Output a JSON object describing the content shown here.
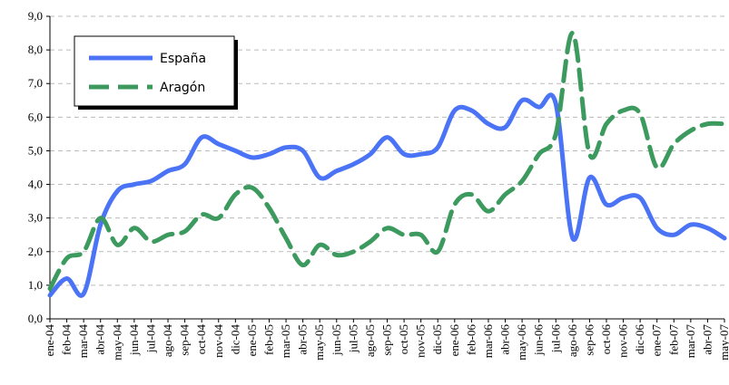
{
  "chart_data": {
    "type": "line",
    "categories": [
      "ene-04",
      "feb-04",
      "mar-04",
      "abr-04",
      "may-04",
      "jun-04",
      "jul-04",
      "ago-04",
      "sep-04",
      "oct-04",
      "nov-04",
      "dic-04",
      "ene-05",
      "feb-05",
      "mar-05",
      "abr-05",
      "may-05",
      "jun-05",
      "jul-05",
      "ago-05",
      "sep-05",
      "oct-05",
      "nov-05",
      "dic-05",
      "ene-06",
      "feb-06",
      "mar-06",
      "abr-06",
      "may-06",
      "jun-06",
      "jul-06",
      "ago-06",
      "sep-06",
      "oct-06",
      "nov-06",
      "dic-06",
      "ene-07",
      "feb-07",
      "mar-07",
      "abr-07",
      "may-07"
    ],
    "series": [
      {
        "name": "España",
        "color": "#4a74f5",
        "values": [
          0.7,
          1.2,
          0.75,
          2.8,
          3.8,
          4.0,
          4.1,
          4.4,
          4.6,
          5.4,
          5.2,
          5.0,
          4.8,
          4.9,
          5.1,
          5.0,
          4.2,
          4.4,
          4.6,
          4.9,
          5.4,
          4.9,
          4.9,
          5.1,
          6.2,
          6.2,
          5.8,
          5.7,
          6.5,
          6.3,
          6.4,
          2.4,
          4.2,
          3.4,
          3.6,
          3.6,
          2.7,
          2.5,
          2.8,
          2.7,
          2.4
        ]
      },
      {
        "name": "Aragón",
        "color": "#3c9a5f",
        "dashed": true,
        "values": [
          0.9,
          1.8,
          2.0,
          3.0,
          2.2,
          2.7,
          2.3,
          2.5,
          2.6,
          3.1,
          3.0,
          3.7,
          3.9,
          3.3,
          2.4,
          1.6,
          2.2,
          1.9,
          2.0,
          2.3,
          2.7,
          2.5,
          2.5,
          2.0,
          3.4,
          3.7,
          3.2,
          3.7,
          4.1,
          4.9,
          5.5,
          8.5,
          4.9,
          5.8,
          6.2,
          6.1,
          4.5,
          5.2,
          5.6,
          5.8,
          5.8
        ]
      }
    ],
    "ylim": [
      0,
      9
    ],
    "yticks": [
      {
        "value": 0,
        "label": "0,0"
      },
      {
        "value": 1,
        "label": "1,0"
      },
      {
        "value": 2,
        "label": "2,0"
      },
      {
        "value": 3,
        "label": "3,0"
      },
      {
        "value": 4,
        "label": "4,0"
      },
      {
        "value": 5,
        "label": "5,0"
      },
      {
        "value": 6,
        "label": "6,0"
      },
      {
        "value": 7,
        "label": "7,0"
      },
      {
        "value": 8,
        "label": "8,0"
      },
      {
        "value": 9,
        "label": "9,0"
      }
    ],
    "grid": true,
    "legend": "upper left"
  }
}
